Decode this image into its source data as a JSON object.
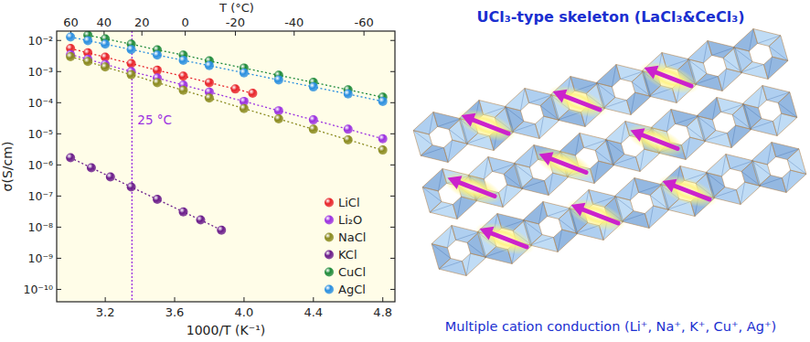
{
  "chart_data": {
    "type": "scatter",
    "log": "y",
    "grid": false,
    "legend": "bottom-right",
    "marker": "circle",
    "line_style": "dotted",
    "x_label": "1000/T (K⁻¹)",
    "y_label": "σ(S/cm)",
    "x2_label": "T (°C)",
    "xlim": [
      2.92,
      4.87
    ],
    "xticks": [
      3.2,
      3.6,
      4.0,
      4.4,
      4.8
    ],
    "x2ticks": [
      60,
      40,
      20,
      0,
      -20,
      -40,
      -60
    ],
    "ylim": [
      4e-11,
      0.02
    ],
    "yticks": [
      {
        "value": 1e-10,
        "label": "10⁻¹⁰"
      },
      {
        "value": 1e-09,
        "label": "10⁻⁹"
      },
      {
        "value": 1e-08,
        "label": "10⁻⁸"
      },
      {
        "value": 1e-07,
        "label": "10⁻⁷"
      },
      {
        "value": 1e-06,
        "label": "10⁻⁶"
      },
      {
        "value": 1e-05,
        "label": "10⁻⁵"
      },
      {
        "value": 0.0001,
        "label": "10⁻⁴"
      },
      {
        "value": 0.001,
        "label": "10⁻³"
      },
      {
        "value": 0.01,
        "label": "10⁻²"
      }
    ],
    "annotations": [
      {
        "text": "25 °C",
        "x": 3.354,
        "color": "#9b30e0"
      }
    ],
    "series": [
      {
        "name": "LiCl",
        "color": "#e8242a",
        "x": [
          3.0,
          3.1,
          3.2,
          3.35,
          3.5,
          3.65,
          3.8,
          3.95,
          4.05
        ],
        "values": [
          0.0055,
          0.004,
          0.0029,
          0.0018,
          0.0011,
          0.00071,
          0.00044,
          0.000275,
          0.0002
        ]
      },
      {
        "name": "Li₂O",
        "color": "#9b30e0",
        "x": [
          3.0,
          3.1,
          3.2,
          3.35,
          3.5,
          3.65,
          3.8,
          4.0,
          4.2,
          4.4,
          4.6,
          4.8
        ],
        "values": [
          0.0035,
          0.0025,
          0.0017,
          0.001,
          0.00062,
          0.00037,
          0.00022,
          0.00011,
          5.5e-05,
          2.8e-05,
          1.4e-05,
          6.9e-06
        ]
      },
      {
        "name": "NaCl",
        "color": "#8a8a1e",
        "x": [
          3.0,
          3.1,
          3.2,
          3.35,
          3.5,
          3.65,
          3.8,
          4.0,
          4.2,
          4.4,
          4.6,
          4.8
        ],
        "values": [
          0.003,
          0.0021,
          0.0014,
          0.00079,
          0.00044,
          0.00025,
          0.00014,
          6.5e-05,
          3e-05,
          1.4e-05,
          6.4e-06,
          3e-06
        ]
      },
      {
        "name": "KCl",
        "color": "#6a1b8a",
        "x": [
          3.0,
          3.12,
          3.23,
          3.35,
          3.5,
          3.65,
          3.75,
          3.87
        ],
        "values": [
          1.7e-06,
          8.1e-07,
          4.1e-07,
          1.95e-07,
          7.8e-08,
          3.1e-08,
          1.7e-08,
          8e-09
        ]
      },
      {
        "name": "CuCl",
        "color": "#1e8a3a",
        "x": [
          3.1,
          3.2,
          3.35,
          3.5,
          3.65,
          3.8,
          4.0,
          4.2,
          4.4,
          4.6,
          4.8
        ],
        "values": [
          0.0148,
          0.0113,
          0.0076,
          0.005,
          0.0034,
          0.0022,
          0.0013,
          0.00076,
          0.00045,
          0.00026,
          0.00015
        ]
      },
      {
        "name": "AgCl",
        "color": "#2a8fe0",
        "x": [
          3.0,
          3.1,
          3.2,
          3.35,
          3.5,
          3.65,
          3.8,
          4.0,
          4.2,
          4.4,
          4.6,
          4.8
        ],
        "values": [
          0.0129,
          0.0099,
          0.0076,
          0.0051,
          0.0034,
          0.0023,
          0.00155,
          0.00091,
          0.00054,
          0.00032,
          0.00019,
          0.00011
        ]
      }
    ]
  },
  "diagram": {
    "title": "UCl₃-type skeleton (LaCl₃&CeCl₃)",
    "caption": "Multiple cation conduction (Li⁺, Na⁺, K⁺, Cu⁺, Ag⁺)"
  }
}
